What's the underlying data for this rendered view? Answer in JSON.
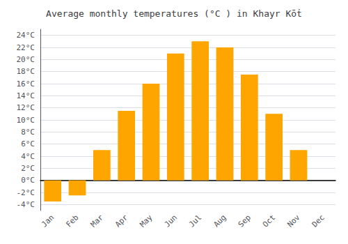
{
  "chart_data": {
    "type": "bar",
    "title": "Average monthly temperatures (°C ) in Khayr Kōṫ",
    "categories": [
      "Jan",
      "Feb",
      "Mar",
      "Apr",
      "May",
      "Jun",
      "Jul",
      "Aug",
      "Sep",
      "Oct",
      "Nov",
      "Dec"
    ],
    "values": [
      -3.5,
      -2.5,
      5.0,
      11.5,
      16.0,
      21.0,
      23.0,
      22.0,
      17.5,
      11.0,
      5.0,
      0.0
    ],
    "color": "#FFA500",
    "ylim": [
      -5,
      25
    ],
    "yticks": [
      {
        "value": -4,
        "label": "-4°C"
      },
      {
        "value": -2,
        "label": "-2°C"
      },
      {
        "value": 0,
        "label": "0°C"
      },
      {
        "value": 2,
        "label": "2°C"
      },
      {
        "value": 4,
        "label": "4°C"
      },
      {
        "value": 6,
        "label": "6°C"
      },
      {
        "value": 8,
        "label": "8°C"
      },
      {
        "value": 10,
        "label": "10°C"
      },
      {
        "value": 12,
        "label": "12°C"
      },
      {
        "value": 14,
        "label": "14°C"
      },
      {
        "value": 16,
        "label": "16°C"
      },
      {
        "value": 18,
        "label": "18°C"
      },
      {
        "value": 20,
        "label": "20°C"
      },
      {
        "value": 22,
        "label": "22°C"
      },
      {
        "value": 24,
        "label": "24°C"
      }
    ],
    "grid": true
  }
}
